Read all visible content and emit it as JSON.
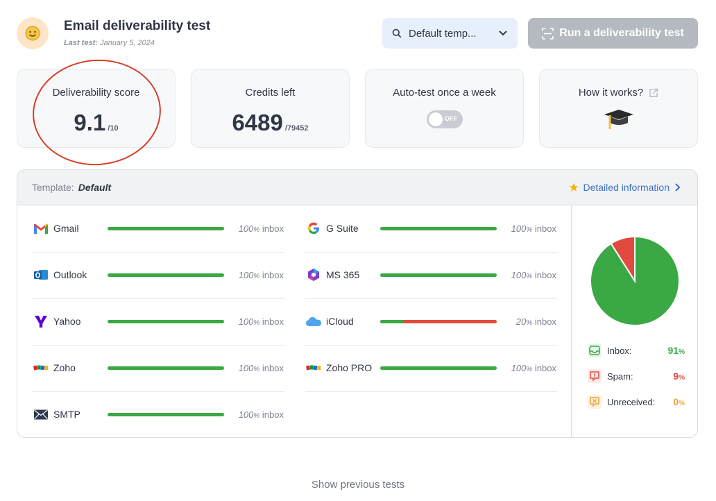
{
  "header": {
    "title": "Email deliverability test",
    "last_test_label": "Last test:",
    "last_test_date": "January 5, 2024",
    "template_select_value": "Default temp...",
    "run_button_label": "Run a deliverability test"
  },
  "cards": {
    "score": {
      "label": "Deliverability score",
      "value": "9.1",
      "denominator": "/10"
    },
    "credits": {
      "label": "Credits left",
      "value": "6489",
      "total": "/79452"
    },
    "autotest": {
      "label": "Auto-test once a week",
      "toggle_state": "OFF"
    },
    "how": {
      "label": "How it works?"
    }
  },
  "panel": {
    "template_label": "Template:",
    "template_name": "Default",
    "detail_link": "Detailed information",
    "suffix": "inbox",
    "pct_sign": "%",
    "providers_left": [
      {
        "name": "Gmail",
        "percent": 100,
        "icon": "gmail-icon"
      },
      {
        "name": "Outlook",
        "percent": 100,
        "icon": "outlook-icon"
      },
      {
        "name": "Yahoo",
        "percent": 100,
        "icon": "yahoo-icon"
      },
      {
        "name": "Zoho",
        "percent": 100,
        "icon": "zoho-icon"
      },
      {
        "name": "SMTP",
        "percent": 100,
        "icon": "envelope-icon"
      }
    ],
    "providers_right": [
      {
        "name": "G Suite",
        "percent": 100,
        "icon": "google-icon"
      },
      {
        "name": "MS 365",
        "percent": 100,
        "icon": "ms365-icon"
      },
      {
        "name": "iCloud",
        "percent": 20,
        "icon": "cloud-icon"
      },
      {
        "name": "Zoho PRO",
        "percent": 100,
        "icon": "zoho-icon"
      }
    ],
    "summary": [
      {
        "label": "Inbox:",
        "value": "91",
        "color": "#3aa845"
      },
      {
        "label": "Spam:",
        "value": "9",
        "color": "#e24a3f"
      },
      {
        "label": "Unreceived:",
        "value": "0",
        "color": "#f2a03c"
      }
    ]
  },
  "chart_data": {
    "type": "pie",
    "categories": [
      "Inbox",
      "Spam",
      "Unreceived"
    ],
    "values": [
      91,
      9,
      0
    ],
    "colors": [
      "#3aa845",
      "#e24a3f",
      "#f2a03c"
    ]
  },
  "footer": {
    "previous_tests": "Show previous tests"
  },
  "colors": {
    "accent": "#3d73c9",
    "success": "#3aa845",
    "danger": "#e24a3f",
    "warning": "#f2a03c"
  }
}
